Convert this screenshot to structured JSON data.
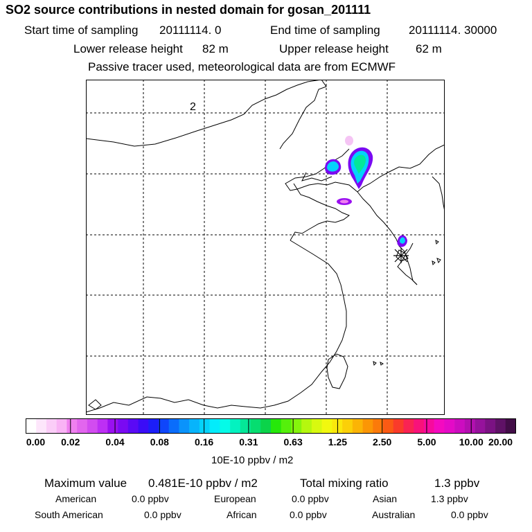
{
  "header": {
    "title": "SO2 source contributions in nested domain for gosan_201111",
    "start_label": "Start time of sampling",
    "start_value": "20111114.     0",
    "end_label": "End time of sampling",
    "end_value": "20111114. 30000",
    "lower_label": "Lower release height",
    "lower_value": "82 m",
    "upper_label": "Upper release height",
    "upper_value": "62 m",
    "note": "Passive tracer used, meteorological data are from ECMWF"
  },
  "map": {
    "grid_label": "2",
    "marker": "receptor-asterisk"
  },
  "chart_data": {
    "type": "heatmap",
    "title": "SO2 source contributions in nested domain for gosan_201111",
    "colorbar": {
      "unit": "10E-10 ppbv / m2",
      "ticks": [
        "0.00",
        "0.02",
        "0.04",
        "0.08",
        "0.16",
        "0.31",
        "0.63",
        "1.25",
        "2.50",
        "5.00",
        "10.00",
        "20.00"
      ],
      "colors": [
        "#ffffff",
        "#fde6fb",
        "#fbcdf8",
        "#f9b3f5",
        "#ef80ef",
        "#e266ee",
        "#d24cf0",
        "#bd2ff4",
        "#9a10f0",
        "#7a0af2",
        "#5a0af5",
        "#3a0cf7",
        "#1c1ef8",
        "#0f46fa",
        "#0a6dfb",
        "#0a93fb",
        "#07b4fb",
        "#04d2fb",
        "#03ecfb",
        "#05fbe8",
        "#03f2c0",
        "#04e798",
        "#06dd70",
        "#0bd34a",
        "#26e80a",
        "#55f00b",
        "#85f40c",
        "#b5f70e",
        "#d8f90f",
        "#f2f80f",
        "#fae80c",
        "#fbd008",
        "#fbb405",
        "#fb9605",
        "#fb7a0a",
        "#fb5a14",
        "#fa3b2a",
        "#f92353",
        "#f8127a",
        "#f70a9e",
        "#f40ac0",
        "#e40ac7",
        "#cc0cc0",
        "#b30fb0",
        "#96129c",
        "#7b1283",
        "#5f1266",
        "#420d47"
      ]
    }
  },
  "stats": {
    "max_label": "Maximum value",
    "max_value": "0.481E-10 ppbv / m2",
    "total_label": "Total mixing ratio",
    "total_value": "1.3 ppbv",
    "american_label": "American",
    "american_value": "0.0 ppbv",
    "european_label": "European",
    "european_value": "0.0 ppbv",
    "asian_label": "Asian",
    "asian_value": "1.3 ppbv",
    "south_american_label": "South American",
    "south_american_value": "0.0 ppbv",
    "african_label": "African",
    "african_value": "0.0 ppbv",
    "australian_label": "Australian",
    "australian_value": "0.0 ppbv"
  }
}
